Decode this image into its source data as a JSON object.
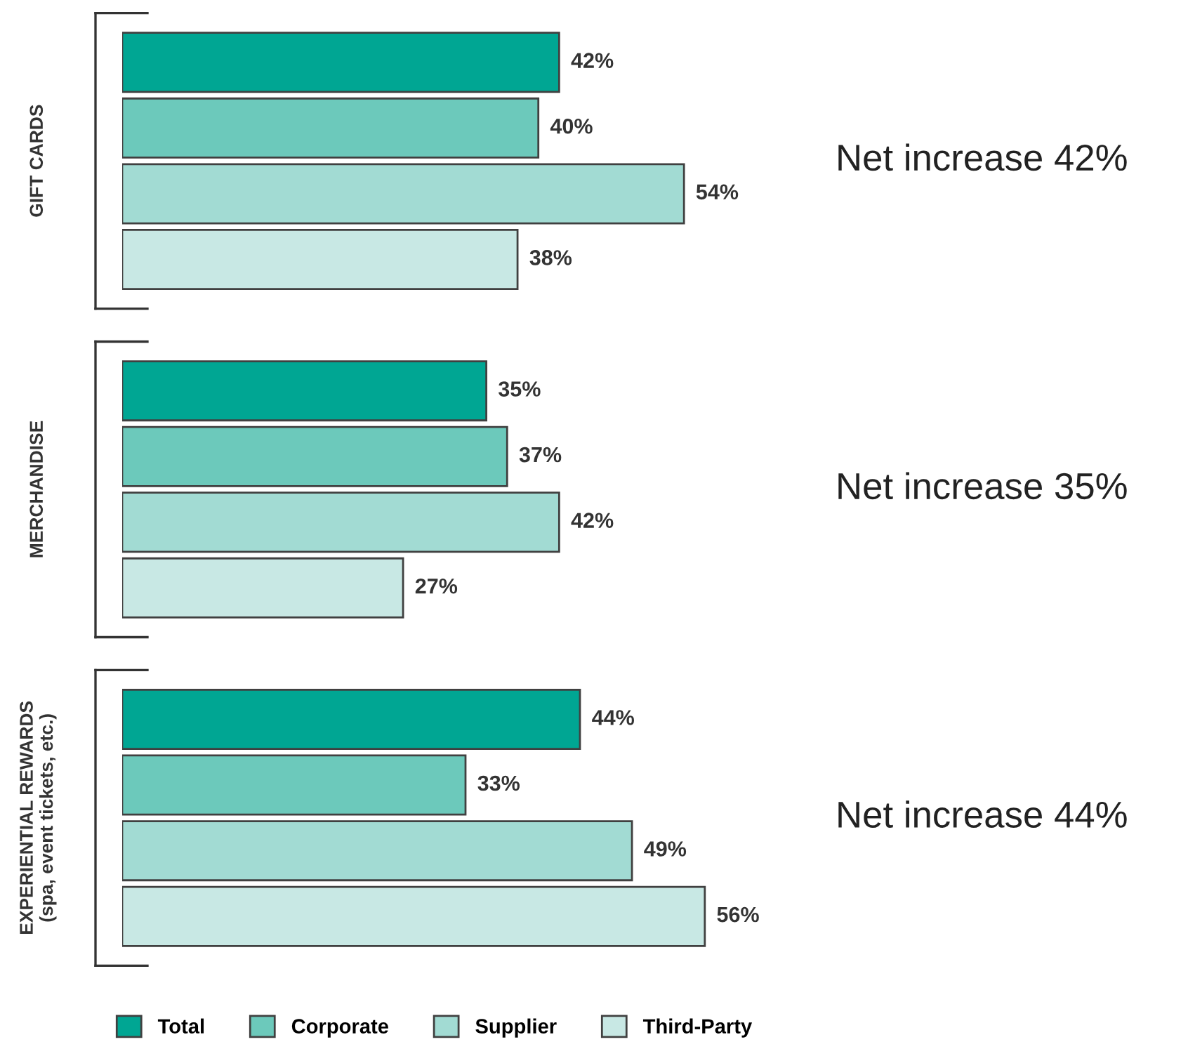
{
  "chart_data": {
    "type": "bar",
    "orientation": "horizontal",
    "categories": [
      "GIFT CARDS",
      "MERCHANDISE",
      "EXPERIENTIAL REWARDS\n(spa, event tickets, etc.)"
    ],
    "series": [
      {
        "name": "Total",
        "color": "#00a693",
        "values": [
          42,
          35,
          44
        ],
        "value_labels": [
          "42%",
          "35%",
          "44%"
        ]
      },
      {
        "name": "Corporate",
        "color": "#6cc9bb",
        "values": [
          40,
          37,
          33
        ],
        "value_labels": [
          "40%",
          "37%",
          "33%"
        ]
      },
      {
        "name": "Supplier",
        "color": "#a2dbd3",
        "values": [
          54,
          42,
          49
        ],
        "value_labels": [
          "54%",
          "42%",
          "49%"
        ]
      },
      {
        "name": "Third-Party",
        "color": "#c8e8e4",
        "values": [
          38,
          27,
          56
        ],
        "value_labels": [
          "38%",
          "27%",
          "56%"
        ]
      }
    ],
    "annotations": [
      "Net increase 42%",
      "Net increase 35%",
      "Net increase 44%"
    ],
    "legend": "bottom"
  }
}
